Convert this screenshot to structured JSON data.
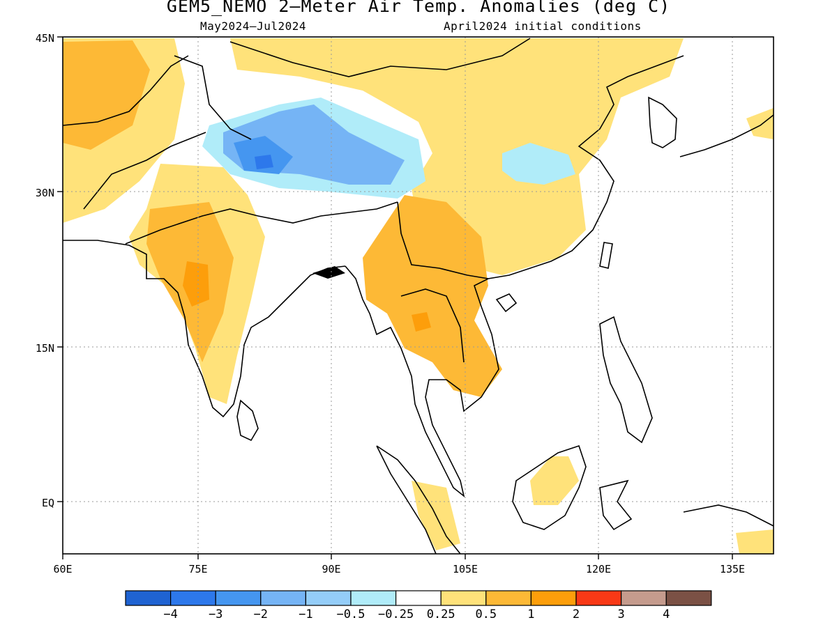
{
  "title": "GEM5_NEMO 2–Meter Air Temp. Anomalies (deg C)",
  "subtitle_left": "May2024–Jul2024",
  "subtitle_right": "April2024 initial conditions",
  "map": {
    "projection": "lat-lon",
    "lon_range": [
      60,
      140
    ],
    "lat_range": [
      -5,
      45
    ],
    "x_ticks": [
      "60E",
      "75E",
      "90E",
      "105E",
      "120E",
      "135E"
    ],
    "y_ticks": [
      "45N",
      "30N",
      "15N",
      "EQ"
    ],
    "grid": "dotted",
    "anomaly_regions": [
      {
        "area": "Tibetan Plateau / western Himalaya",
        "category": "-2 to -1"
      },
      {
        "area": "Central China / Sichuan basin",
        "category": "-0.5 to -0.25"
      },
      {
        "area": "Western India",
        "category": "1 to 2"
      },
      {
        "area": "Indochina / Thailand",
        "category": "0.5 to 1"
      },
      {
        "area": "Iran / Afghanistan",
        "category": "0.5 to 1"
      },
      {
        "area": "Mongolia / northern China",
        "category": "0.25 to 0.5"
      },
      {
        "area": "Borneo",
        "category": "0.25 to 0.5"
      }
    ]
  },
  "colorbar": {
    "colors": [
      "#1f63d2",
      "#2d78eb",
      "#4596f0",
      "#75b4f5",
      "#94cdf8",
      "#b0ecf9",
      "#ffffff",
      "#ffe27a",
      "#fdb936",
      "#fd9e0b",
      "#f93916",
      "#c59b8d",
      "#7b5145"
    ],
    "labels": [
      "−4",
      "−3",
      "−2",
      "−1",
      "−0.5",
      "−0.25",
      "0.25",
      "0.5",
      "1",
      "2",
      "3",
      "4"
    ]
  }
}
